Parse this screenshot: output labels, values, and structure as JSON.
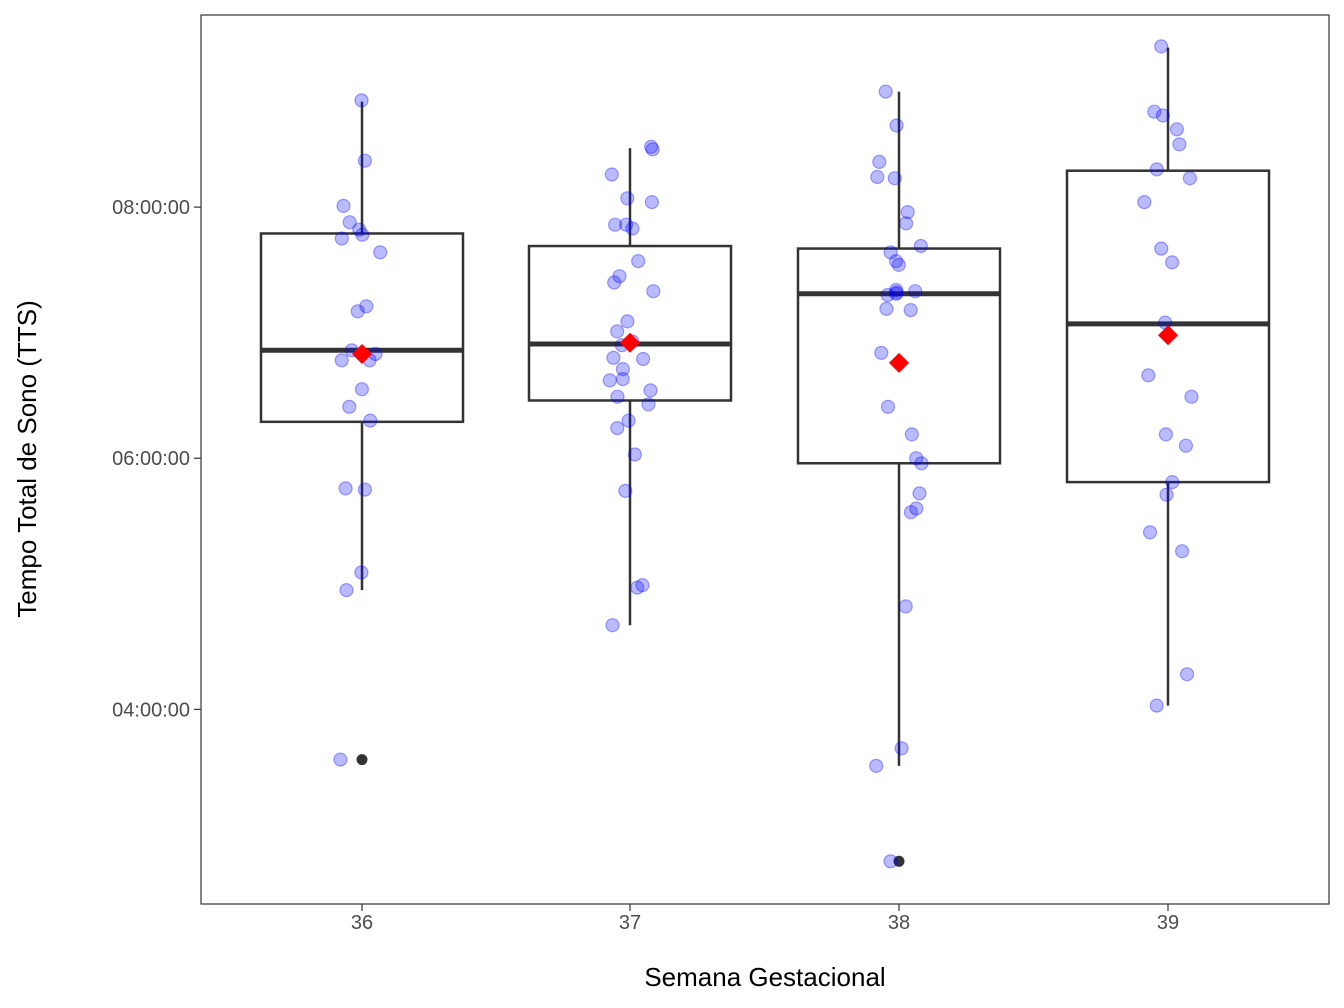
{
  "chart_data": {
    "type": "boxplot",
    "xlabel": "Semana Gestacional",
    "ylabel": "Tempo Total de Sono (TTS)",
    "y_unit": "hours",
    "ylim": [
      2.45,
      9.53
    ],
    "y_ticks": [
      {
        "value": 4,
        "label": "04:00:00"
      },
      {
        "value": 6,
        "label": "06:00:00"
      },
      {
        "value": 8,
        "label": "08:00:00"
      }
    ],
    "categories": [
      "36",
      "37",
      "38",
      "39"
    ],
    "grid": false,
    "colors": {
      "points": "#0000ff",
      "mean": "#ff0000",
      "box": "#333333",
      "outlier": "#333333"
    },
    "boxes": [
      {
        "category": "36",
        "whisker_low": 4.95,
        "q1": 6.29,
        "median": 6.86,
        "q3": 7.79,
        "whisker_high": 8.84,
        "mean": 6.83,
        "outliers": [
          3.6
        ]
      },
      {
        "category": "37",
        "whisker_low": 4.67,
        "q1": 6.46,
        "median": 6.91,
        "q3": 7.69,
        "whisker_high": 8.47,
        "mean": 6.92,
        "outliers": []
      },
      {
        "category": "38",
        "whisker_low": 3.55,
        "q1": 5.96,
        "median": 7.31,
        "q3": 7.67,
        "whisker_high": 8.92,
        "mean": 6.76,
        "outliers": [
          2.79
        ]
      },
      {
        "category": "39",
        "whisker_low": 4.03,
        "q1": 5.81,
        "median": 7.07,
        "q3": 8.29,
        "whisker_high": 9.27,
        "mean": 6.98,
        "outliers": []
      }
    ],
    "points": [
      {
        "category": "36",
        "y": [
          8.85,
          8.37,
          8.01,
          7.88,
          7.82,
          7.78,
          7.75,
          7.64,
          7.21,
          7.17,
          6.86,
          6.83,
          6.78,
          6.78,
          6.55,
          6.41,
          6.3,
          5.76,
          5.75,
          5.09,
          4.95,
          3.6
        ]
      },
      {
        "category": "37",
        "y": [
          8.48,
          8.46,
          8.26,
          8.07,
          8.04,
          7.86,
          7.86,
          7.83,
          7.57,
          7.45,
          7.4,
          7.33,
          7.09,
          7.01,
          6.93,
          6.9,
          6.8,
          6.79,
          6.71,
          6.63,
          6.62,
          6.54,
          6.49,
          6.43,
          6.3,
          6.24,
          6.03,
          5.74,
          4.99,
          4.97,
          4.67
        ]
      },
      {
        "category": "38",
        "y": [
          8.92,
          8.65,
          8.36,
          8.24,
          8.23,
          7.96,
          7.87,
          7.69,
          7.64,
          7.57,
          7.54,
          7.34,
          7.33,
          7.32,
          7.31,
          7.3,
          7.19,
          7.18,
          6.84,
          6.41,
          6.19,
          6.0,
          5.96,
          5.72,
          5.6,
          5.57,
          4.82,
          3.69,
          3.55,
          2.79
        ]
      },
      {
        "category": "39",
        "y": [
          9.28,
          8.76,
          8.73,
          8.62,
          8.5,
          8.3,
          8.23,
          8.04,
          7.67,
          7.56,
          7.08,
          6.66,
          6.49,
          6.19,
          6.1,
          5.81,
          5.71,
          5.41,
          5.26,
          4.28,
          4.03
        ]
      }
    ]
  }
}
